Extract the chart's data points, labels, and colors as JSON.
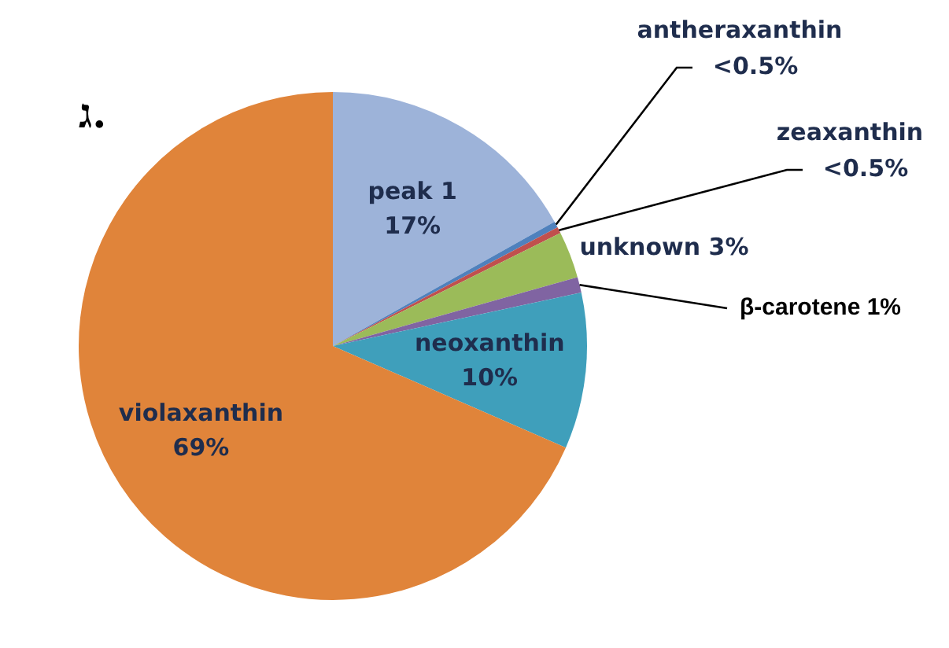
{
  "chart_data": {
    "type": "pie",
    "title": "ג.",
    "categories": [
      "peak 1",
      "antheraxanthin",
      "zeaxanthin",
      "unknown",
      "β-carotene",
      "neoxanthin",
      "violaxanthin"
    ],
    "values": [
      17,
      0.4,
      0.4,
      3,
      1,
      10,
      69
    ],
    "value_labels": [
      "17%",
      "<0.5%",
      "<0.5%",
      "3%",
      "1%",
      "10%",
      "69%"
    ],
    "colors": [
      "#9db3d9",
      "#4f81bd",
      "#c0504d",
      "#9bbb59",
      "#8064a2",
      "#3f9fbb",
      "#e0843a"
    ]
  }
}
